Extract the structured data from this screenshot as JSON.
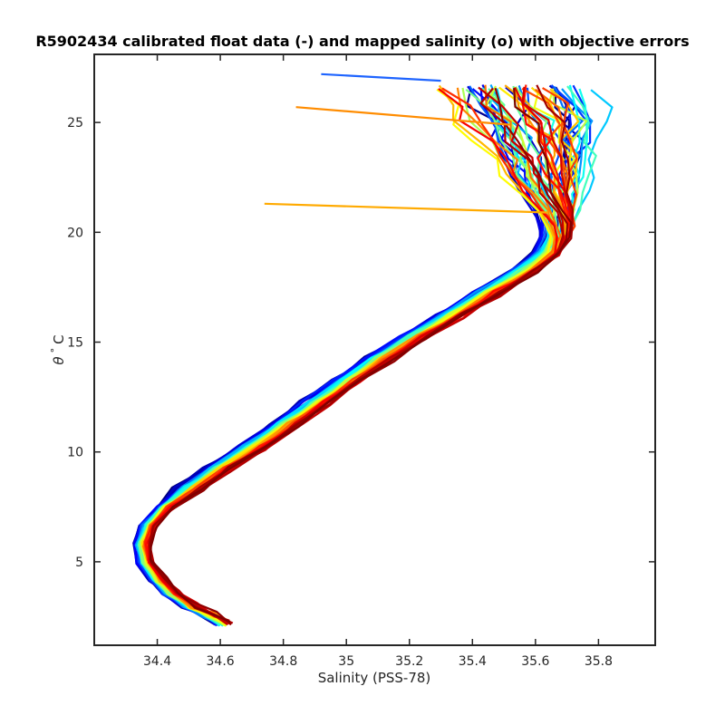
{
  "chart_data": {
    "type": "line",
    "title": "R5902434 calibrated float data (-) and mapped salinity (o) with objective errors",
    "xlabel": "Salinity (PSS-78)",
    "ylabel_symbol": "θ",
    "ylabel_degree": "°",
    "ylabel_unit": "C",
    "xlim": [
      34.2,
      35.98
    ],
    "ylim": [
      1.2,
      28.1
    ],
    "xticks": [
      "34.4",
      "34.6",
      "34.8",
      "35",
      "35.2",
      "35.4",
      "35.6",
      "35.8"
    ],
    "yticks": [
      "5",
      "10",
      "15",
      "20",
      "25"
    ],
    "grid": false,
    "colormap": "jet",
    "profile_count": 60,
    "series_description": "Each line is one float profile (theta vs salinity), colored by cycle from blue (early) to dark red (late).",
    "template_profile": {
      "theta": [
        2.2,
        2.6,
        3.0,
        3.6,
        4.2,
        5.0,
        5.8,
        6.6,
        7.4,
        8.3,
        9.2,
        10.2,
        11.2,
        12.2,
        13.2,
        14.2,
        15.2,
        16.2,
        17.2,
        18.2,
        19.0,
        19.8,
        20.4,
        21.0,
        21.8,
        22.6,
        23.4,
        24.2,
        25.0,
        25.8,
        26.6
      ],
      "salinity": [
        34.61,
        34.56,
        34.5,
        34.44,
        34.4,
        34.36,
        34.35,
        34.37,
        34.42,
        34.5,
        34.59,
        34.7,
        34.8,
        34.9,
        35.0,
        35.1,
        35.21,
        35.33,
        35.44,
        35.56,
        35.63,
        35.66,
        35.66,
        35.65,
        35.62,
        35.6,
        35.58,
        35.56,
        35.53,
        35.5,
        35.47
      ]
    },
    "highlighted_profiles": [
      {
        "theta": [
          20.9,
          21.3
        ],
        "salinity": [
          35.64,
          34.74
        ]
      },
      {
        "theta": [
          24.9,
          25.7
        ],
        "salinity": [
          35.52,
          34.84
        ]
      },
      {
        "theta": [
          26.9,
          27.2
        ],
        "salinity": [
          35.3,
          34.92
        ]
      }
    ]
  }
}
